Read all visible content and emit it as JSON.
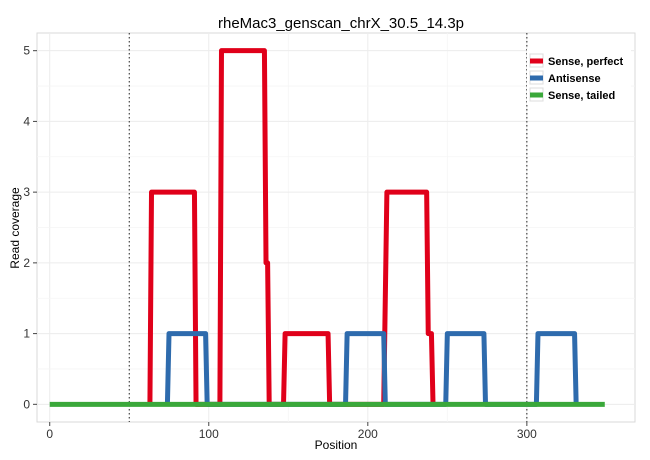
{
  "chart_data": {
    "type": "line",
    "title": "rheMac3_genscan_chrX_30.5_14.3p",
    "xlabel": "Position",
    "ylabel": "Read coverage",
    "xlim": [
      -8,
      368
    ],
    "ylim": [
      -0.25,
      5.25
    ],
    "xticks": [
      0,
      100,
      200,
      300
    ],
    "yticks": [
      0,
      1,
      2,
      3,
      4,
      5
    ],
    "xtick_labels": [
      "0",
      "100",
      "200",
      "300"
    ],
    "ytick_labels": [
      "0",
      "1",
      "2",
      "3",
      "4",
      "5"
    ],
    "grid": true,
    "legend_position": "top-right",
    "vlines": [
      50,
      300
    ],
    "series": [
      {
        "name": "Sense, perfect",
        "color": "#e0001a",
        "x": [
          63,
          64,
          91,
          92,
          107,
          108,
          135,
          136,
          137,
          138,
          147,
          148,
          175,
          176,
          210,
          212,
          237,
          238,
          240,
          241
        ],
        "y": [
          0,
          3,
          3,
          0,
          0,
          5,
          5,
          2,
          2,
          0,
          0,
          1,
          1,
          0,
          0,
          3,
          3,
          1,
          1,
          0
        ]
      },
      {
        "name": "Antisense",
        "color": "#2e6bad",
        "x": [
          74,
          75,
          98,
          99,
          186,
          187,
          210,
          211,
          249,
          250,
          273,
          274,
          306,
          307,
          330,
          331
        ],
        "y": [
          0,
          1,
          1,
          0,
          0,
          1,
          1,
          0,
          0,
          1,
          1,
          0,
          0,
          1,
          1,
          0
        ]
      },
      {
        "name": "Sense, tailed",
        "color": "#3aa83a",
        "x": [
          0,
          349
        ],
        "y": [
          0,
          0
        ]
      }
    ]
  }
}
